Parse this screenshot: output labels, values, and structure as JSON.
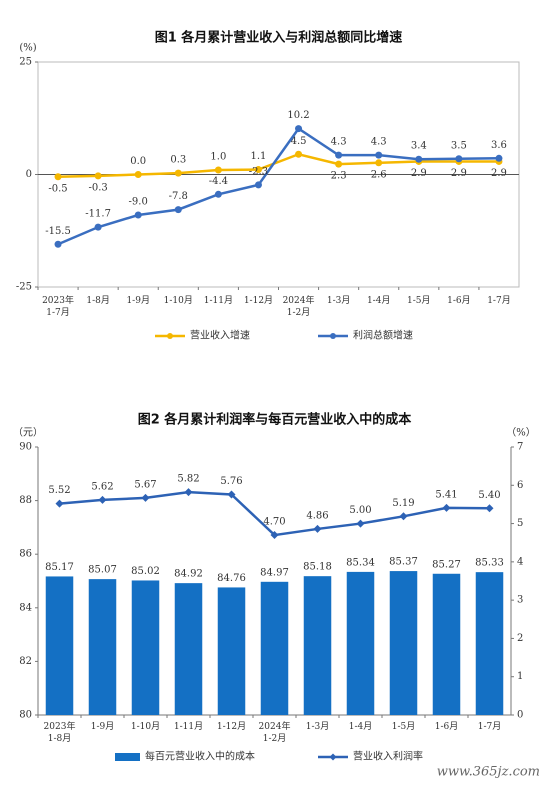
{
  "chart_data": [
    {
      "type": "line",
      "title": "图1  各月累计营业收入与利润总额同比增速",
      "y_unit": "(%)",
      "categories": [
        "2023年\n1-7月",
        "1-8月",
        "1-9月",
        "1-10月",
        "1-11月",
        "1-12月",
        "2024年\n1-2月",
        "1-3月",
        "1-4月",
        "1-5月",
        "1-6月",
        "1-7月"
      ],
      "ylim": [
        -25,
        25
      ],
      "yticks": [
        -25,
        0,
        25
      ],
      "series": [
        {
          "name": "营业收入增速",
          "color": "#f5b700",
          "values": [
            -0.5,
            -0.3,
            0.0,
            0.3,
            1.0,
            1.1,
            4.5,
            2.3,
            2.6,
            2.9,
            2.9,
            2.9
          ],
          "value_labels": [
            "-0.5",
            "-0.3",
            "0.0",
            "0.3",
            "1.0",
            "1.1",
            "4.5",
            "2.3",
            "2.6",
            "2.9",
            "2.9",
            "2.9"
          ]
        },
        {
          "name": "利润总额增速",
          "color": "#3a6ec0",
          "values": [
            -15.5,
            -11.7,
            -9.0,
            -7.8,
            -4.4,
            -2.3,
            10.2,
            4.3,
            4.3,
            3.4,
            3.5,
            3.6
          ],
          "value_labels": [
            "-15.5",
            "-11.7",
            "-9.0",
            "-7.8",
            "-4.4",
            "-2.3",
            "10.2",
            "4.3",
            "4.3",
            "3.4",
            "3.5",
            "3.6"
          ]
        }
      ]
    },
    {
      "type": "bar",
      "title": "图2  各月累计利润率与每百元营业收入中的成本",
      "y_unit": "（元）",
      "y2_unit": "（%）",
      "categories": [
        "2023年\n1-8月",
        "1-9月",
        "1-10月",
        "1-11月",
        "1-12月",
        "2024年\n1-2月",
        "1-3月",
        "1-4月",
        "1-5月",
        "1-6月",
        "1-7月"
      ],
      "ylim": [
        80,
        90
      ],
      "yticks": [
        80,
        82,
        84,
        86,
        88,
        90
      ],
      "y2lim": [
        0,
        7
      ],
      "y2ticks": [
        0,
        1,
        2,
        3,
        4,
        5,
        6,
        7
      ],
      "series": [
        {
          "name": "每百元营业收入中的成本",
          "type": "bar",
          "color": "#1470c4",
          "values": [
            85.17,
            85.07,
            85.02,
            84.92,
            84.76,
            84.97,
            85.18,
            85.34,
            85.37,
            85.27,
            85.33
          ],
          "value_labels": [
            "85.17",
            "85.07",
            "85.02",
            "84.92",
            "84.76",
            "84.97",
            "85.18",
            "85.34",
            "85.37",
            "85.27",
            "85.33"
          ]
        },
        {
          "name": "营业收入利润率",
          "type": "line",
          "axis": "y2",
          "color": "#2d62b5",
          "values": [
            5.52,
            5.62,
            5.67,
            5.82,
            5.76,
            4.7,
            4.86,
            5.0,
            5.19,
            5.41,
            5.4
          ],
          "value_labels": [
            "5.52",
            "5.62",
            "5.67",
            "5.82",
            "5.76",
            "4.70",
            "4.86",
            "5.00",
            "5.19",
            "5.41",
            "5.40"
          ]
        }
      ]
    }
  ],
  "watermark": "www.365jz.com"
}
